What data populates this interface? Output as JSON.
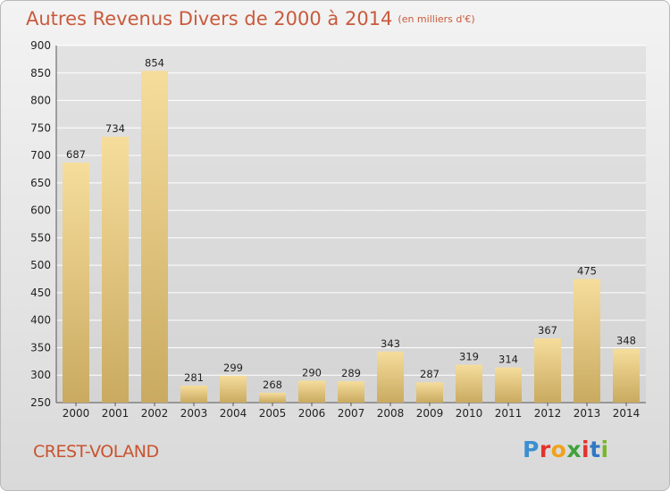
{
  "title": "Autres Revenus Divers de 2000 à 2014",
  "unit": "(en milliers d'€)",
  "commune": "CREST-VOLAND",
  "logo": {
    "letters": [
      "P",
      "r",
      "o",
      "x",
      "i",
      "t",
      "i"
    ],
    "colors": [
      "#3a8fd0",
      "#e4332b",
      "#f0a21b",
      "#3fa23a",
      "#e4332b",
      "#2f78c4",
      "#7ab52c"
    ]
  },
  "colors": {
    "title": "#c95a3c",
    "bar_light": "#f6dd9c",
    "bar_dark": "#c9aa60",
    "grid": "#ffffff"
  },
  "chart_data": {
    "type": "bar",
    "categories": [
      "2000",
      "2001",
      "2002",
      "2003",
      "2004",
      "2005",
      "2006",
      "2007",
      "2008",
      "2009",
      "2010",
      "2011",
      "2012",
      "2013",
      "2014"
    ],
    "values": [
      687,
      734,
      854,
      281,
      299,
      268,
      290,
      289,
      343,
      287,
      319,
      314,
      367,
      475,
      348
    ],
    "ylim": [
      250,
      900
    ],
    "yticks": [
      250,
      300,
      350,
      400,
      450,
      500,
      550,
      600,
      650,
      700,
      750,
      800,
      850,
      900
    ],
    "grid": true,
    "title": "Autres Revenus Divers de 2000 à 2014",
    "xlabel": "",
    "ylabel": ""
  }
}
